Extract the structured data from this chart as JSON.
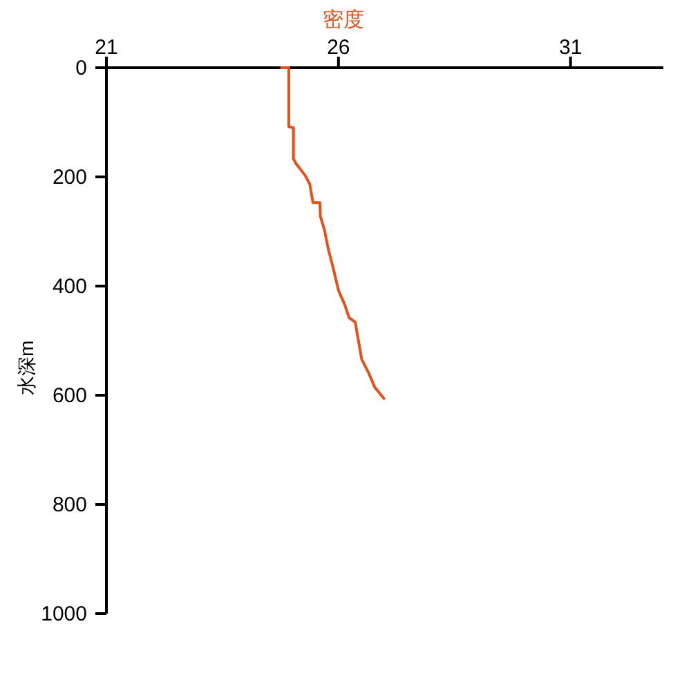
{
  "chart_data": {
    "type": "line",
    "xlabel": "密度",
    "ylabel": "水深m",
    "xlim": [
      21,
      33
    ],
    "xticks": [
      21,
      26,
      31
    ],
    "ylim": [
      1000,
      0
    ],
    "yticks": [
      0,
      200,
      400,
      600,
      800,
      1000
    ],
    "series": [
      {
        "color": "#e8501a",
        "x": [
          24.77,
          24.93,
          24.93,
          25.03,
          25.03,
          25.08,
          25.28,
          25.38,
          25.45,
          25.6,
          25.61,
          25.7,
          25.78,
          25.88,
          26.0,
          26.13,
          26.23,
          26.36,
          26.43,
          26.5,
          26.65,
          26.78,
          26.98
        ],
        "values": [
          0,
          0,
          108,
          110,
          167,
          175,
          197,
          213,
          247,
          247,
          272,
          298,
          332,
          365,
          408,
          433,
          458,
          466,
          500,
          534,
          559,
          585,
          606
        ]
      }
    ]
  }
}
